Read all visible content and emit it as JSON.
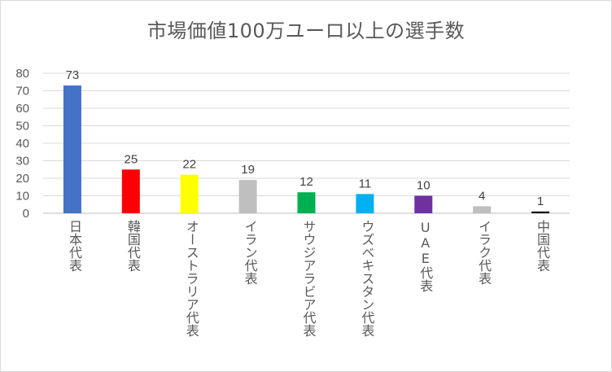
{
  "chart_data": {
    "type": "bar",
    "title": "市場価値100万ユーロ以上の選手数",
    "categories": [
      "日本代表",
      "韓国代表",
      "オーストラリア代表",
      "イラン代表",
      "サウジアラビア代表",
      "ウズベキスタン代表",
      "UAE代表",
      "イラク代表",
      "中国代表"
    ],
    "values": [
      73,
      25,
      22,
      19,
      12,
      11,
      10,
      4,
      1
    ],
    "colors": [
      "#4472c4",
      "#ff0000",
      "#ffff00",
      "#bfbfbf",
      "#00b050",
      "#00b0f0",
      "#7030a0",
      "#bfbfbf",
      "#000000"
    ],
    "ylim": [
      0,
      80
    ],
    "yticks": [
      "0",
      "10",
      "20",
      "30",
      "40",
      "50",
      "60",
      "70",
      "80"
    ],
    "grid": true,
    "data_labels": true,
    "legend": false,
    "xlabel": "",
    "ylabel": ""
  }
}
